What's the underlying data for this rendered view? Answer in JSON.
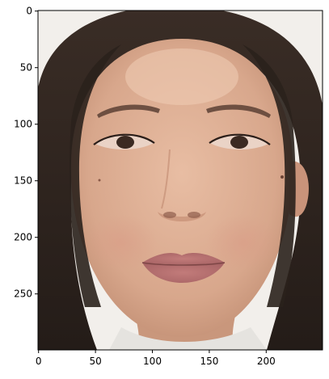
{
  "chart_data": {
    "type": "image",
    "title": "",
    "xlabel": "",
    "ylabel": "",
    "xlim": [
      -0.5,
      249.5
    ],
    "ylim": [
      299.5,
      -0.5
    ],
    "x_ticks": [
      0,
      50,
      100,
      150,
      200
    ],
    "y_ticks": [
      0,
      50,
      100,
      150,
      200,
      250
    ],
    "x_tick_labels": [
      "0",
      "50",
      "100",
      "150",
      "200"
    ],
    "y_tick_labels": [
      "0",
      "50",
      "100",
      "150",
      "200",
      "250"
    ],
    "grid": false,
    "image_content": "photo-face",
    "colors": {
      "background": "#f2efeb",
      "hair": "#2a211c",
      "skin": "#dcae94",
      "lips": "#b66f70",
      "shirt": "#e5e3df"
    }
  }
}
